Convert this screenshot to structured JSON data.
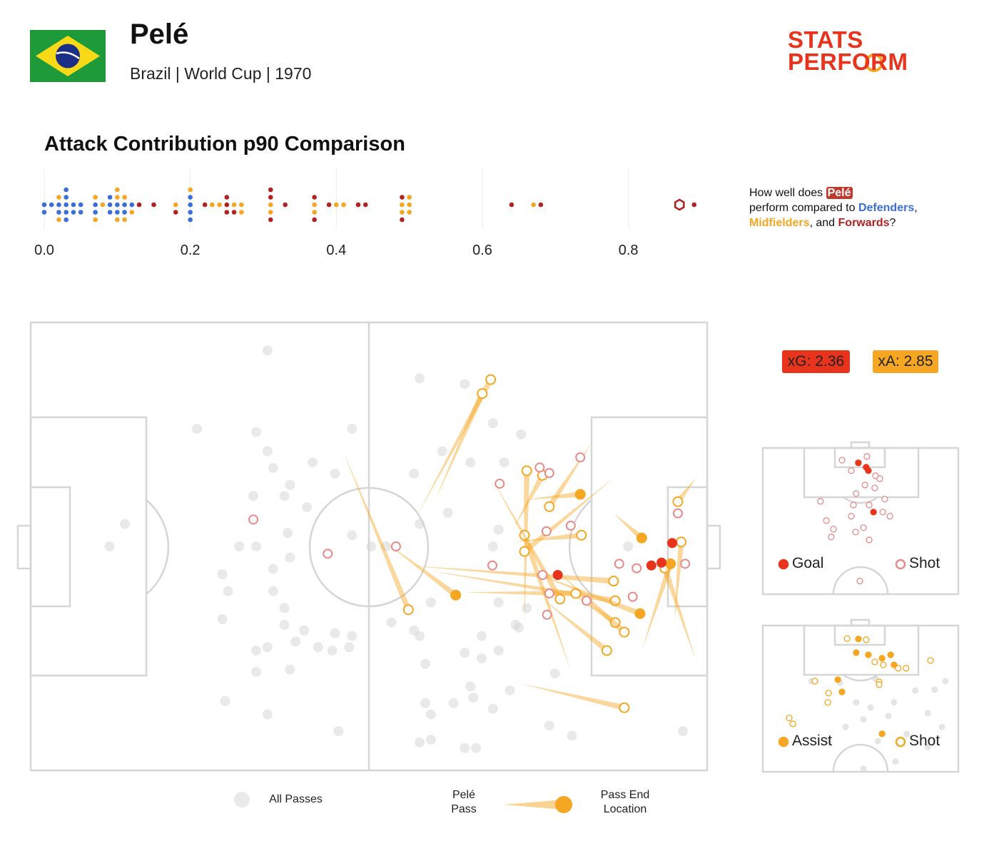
{
  "header": {
    "title": "Pelé",
    "subtitle": "Brazil | World Cup | 1970",
    "logo": [
      "STATS",
      "PERFORM"
    ]
  },
  "annotation": {
    "parts": [
      "How well does",
      "perform compared to",
      ",",
      ", and",
      "?"
    ]
  },
  "metrics": [
    {
      "label": "xG: 2.36",
      "value": 2.36,
      "color": "#e8341c"
    },
    {
      "label": "xA: 2.85",
      "value": 2.85,
      "color": "#f5a623"
    }
  ],
  "chart_data": [
    {
      "type": "strip",
      "title": "Attack Contribution p90 Comparison",
      "xlim": [
        0,
        0.9
      ],
      "xticks": [
        {
          "value": 0,
          "label": "0.0"
        },
        0.2,
        0.4,
        0.6,
        0.8
      ],
      "grid": true,
      "series": [
        {
          "name": "Defenders",
          "color": "#3b6fd6",
          "values": [
            0,
            0,
            0.01,
            0.02,
            0.02,
            0.03,
            0.03,
            0.03,
            0.03,
            0.03,
            0.04,
            0.04,
            0.05,
            0.05,
            0.07,
            0.07,
            0.09,
            0.09,
            0.09,
            0.1,
            0.1,
            0.11,
            0.11,
            0.12,
            0.2,
            0.2,
            0.2,
            0.2
          ]
        },
        {
          "name": "Midfielders",
          "color": "#f5a623",
          "values": [
            0.02,
            0.02,
            0.07,
            0.07,
            0.08,
            0.1,
            0.1,
            0.1,
            0.11,
            0.11,
            0.12,
            0.18,
            0.2,
            0.23,
            0.24,
            0.26,
            0.27,
            0.27,
            0.31,
            0.31,
            0.37,
            0.37,
            0.4,
            0.41,
            0.49,
            0.49,
            0.5,
            0.5,
            0.5,
            0.67
          ]
        },
        {
          "name": "Forwards",
          "color": "#b22222",
          "values": [
            0.13,
            0.15,
            0.18,
            0.22,
            0.25,
            0.25,
            0.25,
            0.26,
            0.31,
            0.31,
            0.31,
            0.33,
            0.37,
            0.37,
            0.39,
            0.43,
            0.44,
            0.49,
            0.49,
            0.64,
            0.68,
            0.89
          ]
        }
      ],
      "highlight": {
        "name": "Pelé",
        "value": 0.87,
        "color": "#b22222"
      }
    },
    {
      "type": "pitch",
      "xlim": [
        0,
        120
      ],
      "ylim": [
        0,
        80
      ],
      "end_label": "Pass End Location",
      "series": [
        {
          "name": "All Passes",
          "color": "#d4d4d4",
          "marker": "filled",
          "x": [
            42,
            69,
            77,
            29.5,
            40,
            57,
            42,
            87,
            82,
            73,
            78,
            43,
            50,
            54,
            46,
            39.5,
            45,
            49,
            68,
            84,
            74,
            69,
            83,
            45.6,
            37,
            40,
            46,
            57,
            60.4,
            63,
            14,
            16.7,
            43,
            34,
            35,
            43,
            45,
            34,
            45,
            48.5,
            54,
            57,
            47,
            51,
            42,
            40,
            53.5,
            56.5,
            46,
            40,
            64,
            68,
            71,
            69,
            80,
            83,
            86,
            77,
            80,
            70,
            93,
            85,
            78,
            78.5,
            70,
            75,
            82,
            71,
            34.5,
            42,
            54.6,
            92,
            96,
            115.7,
            69,
            71,
            77,
            79,
            82,
            88,
            86.6,
            106,
            83
          ],
          "y": [
            5,
            10,
            11,
            19,
            19.6,
            19,
            23,
            20,
            18,
            23,
            25,
            26,
            25,
            27,
            29,
            31,
            31,
            33,
            27,
            25,
            34,
            36,
            37,
            37.6,
            40,
            40,
            42,
            38,
            40,
            40,
            40,
            36,
            44,
            45,
            48,
            48,
            51,
            53,
            54,
            55,
            55.5,
            56,
            57,
            58,
            58,
            58.6,
            58.6,
            58,
            62,
            62.4,
            53.6,
            55,
            50,
            56,
            56,
            58.6,
            54,
            59,
            60,
            61,
            62.7,
            65.7,
            65,
            67,
            68,
            68,
            69,
            70,
            67.6,
            70,
            73,
            72,
            73.8,
            73,
            75,
            74.5,
            76,
            76,
            40,
            51,
            54.5,
            40,
            50
          ]
        },
        {
          "name": "Pelé Pass",
          "color": "#f5a623",
          "marker": "hollow",
          "x": [
            68.6,
            71.8,
            55.3,
            66.7,
            70.5,
            87.6,
            99.6,
            95.8,
            85.7,
            103.4,
            87,
            118,
            114.2,
            118,
            95.8,
            93.3,
            90.8,
            81.9,
            76.8,
            85.7
          ],
          "y": [
            34.4,
            31.6,
            22.7,
            43.4,
            44.3,
            53.6,
            21.4,
            62.2,
            39.2,
            27.8,
            64.5,
            27.8,
            53.2,
            60.3,
            48.2,
            44.3,
            49.4,
            28,
            48.2,
            36.7
          ],
          "end_x": [
            81.6,
            80.1,
            67,
            103.4,
            103.7,
            88,
            92,
            87.6,
            97.7,
            87.6,
            105.3,
            114.8,
            115.4,
            112.5,
            103.7,
            105.3,
            102.2,
            93.9,
            96.7,
            90.8
          ],
          "end_y": [
            10.2,
            12.7,
            51.3,
            46.2,
            49.7,
            26.5,
            32.9,
            38,
            38,
            40.9,
            68.8,
            32,
            39.2,
            43.9,
            53.6,
            55.3,
            58.6,
            49.4,
            48.4,
            27.3
          ]
        },
        {
          "color": "#f5a623",
          "marker": "filled",
          "x": [
            62.9,
            88.2,
            108.5,
            103.4,
            88.2
          ],
          "y": [
            39.2,
            44.3,
            58.3,
            34.1,
            31.6
          ],
          "end_x": [
            75.4,
            108.1,
            113.5,
            108.4,
            97.5
          ],
          "end_y": [
            48.7,
            52,
            43.1,
            38.5,
            30.7
          ]
        },
        {
          "color": "#e88a8a",
          "marker": "hollow",
          "x": [
            39.5,
            52.7,
            64.8,
            81.9,
            83.2,
            90.3,
            92,
            97.5,
            91.5,
            95.8,
            90.8,
            92,
            91.6,
            98.6,
            106.8,
            107.5,
            116.1,
            104.4,
            114.8
          ],
          "y": [
            35.2,
            41.3,
            40,
            43.4,
            28.8,
            25.9,
            26.9,
            24.1,
            37.3,
            36.3,
            45.1,
            48.4,
            52.2,
            49.7,
            49,
            43.9,
            43.1,
            43.1,
            34.1
          ]
        },
        {
          "color": "#e8341c",
          "marker": "filled",
          "x": [
            93.5,
            110.1,
            111.9,
            113.8
          ],
          "y": [
            45.1,
            43.4,
            42.9,
            39.4
          ]
        }
      ]
    },
    {
      "type": "half-pitch",
      "xlim": [
        0,
        80
      ],
      "ylim": [
        0,
        60
      ],
      "series": [
        {
          "name": "Shot",
          "color": "#e88a8a",
          "marker": "hollow",
          "legend": true,
          "x": [
            32.4,
            42.6,
            36.2,
            46.1,
            47.9,
            41.8,
            45.8,
            38.2,
            49.9,
            23.6,
            37.1,
            43.5,
            49.1,
            26,
            36.2,
            52,
            41.2,
            38,
            28.9,
            43.5,
            28,
            39.7
          ],
          "y": [
            5,
            3.5,
            9.3,
            11.4,
            12.6,
            15.2,
            16.4,
            18.7,
            21,
            21.9,
            23.4,
            23.4,
            26.3,
            29.8,
            28,
            28,
            32.7,
            34.5,
            33.3,
            37.7,
            36.5,
            54.6
          ]
        },
        {
          "name": "Goal",
          "color": "#e8341c",
          "marker": "filled",
          "legend": true,
          "x": [
            39.1,
            42.3,
            43.2,
            45.3
          ],
          "y": [
            6.1,
            7.9,
            9.3,
            26.3
          ]
        }
      ]
    },
    {
      "type": "half-pitch",
      "xlim": [
        0,
        80
      ],
      "ylim": [
        0,
        60
      ],
      "series": [
        {
          "color": "#d4d4d4",
          "marker": "filled",
          "legend": false,
          "x": [
            19.9,
            31.6,
            46.1,
            62.4,
            70.3,
            74.7,
            38.2,
            44.1,
            53.7,
            67.5,
            41.2,
            51.4,
            33.9,
            47.1,
            58.9,
            67.5,
            41.2,
            54.3,
            26.6,
            73.3
          ],
          "y": [
            22.8,
            23.4,
            21.9,
            26.6,
            26.3,
            22.8,
            31.5,
            33.6,
            31.5,
            35.9,
            38.5,
            37.1,
            41.6,
            47.4,
            44.5,
            49.8,
            58.7,
            55.8,
            47.4,
            41.6
          ]
        },
        {
          "name": "Shot",
          "color": "#f5a623",
          "marker": "hollow",
          "legend": true,
          "x": [
            34.5,
            42.3,
            45.8,
            49.3,
            55.4,
            58.6,
            68.6,
            47.6,
            26.9,
            21.3,
            26.6,
            10.8,
            12.3,
            47.6
          ],
          "y": [
            5.3,
            5.8,
            14.9,
            16.1,
            17.5,
            17.5,
            14.3,
            23.1,
            27.7,
            22.8,
            31.5,
            37.9,
            40.3,
            24.2
          ]
        },
        {
          "name": "Assist",
          "color": "#f5a623",
          "marker": "filled",
          "legend": true,
          "x": [
            39.1,
            38.2,
            43.2,
            48.8,
            52.3,
            53.7,
            30.7,
            32.4,
            48.8
          ],
          "y": [
            5.5,
            11.1,
            12,
            13.4,
            12,
            16.1,
            22.2,
            27.2,
            44.4
          ]
        }
      ]
    }
  ]
}
